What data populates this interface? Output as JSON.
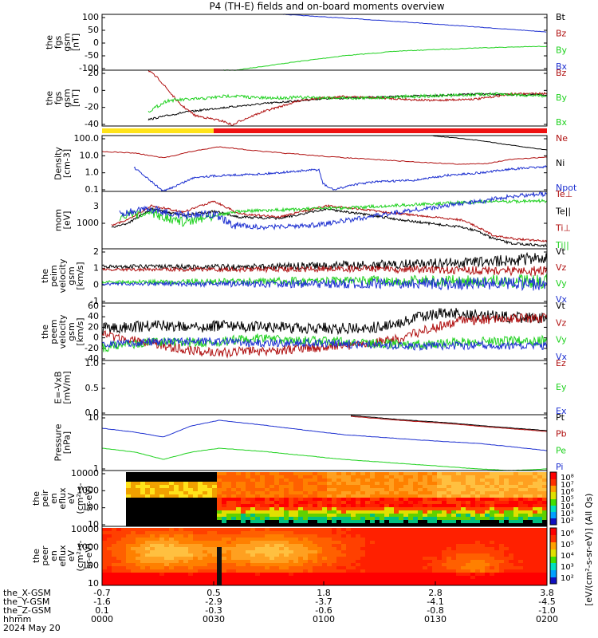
{
  "title": "P4 (TH-E) fields and on-board moments overview",
  "colors": {
    "black": "#000000",
    "red": "#b01010",
    "green": "#1fd11f",
    "blue": "#1c2fd0",
    "yellow": "#ffe31a",
    "bar_red": "#ee1111"
  },
  "chart_data": [
    {
      "type": "line",
      "ylabel_lines": [
        "the",
        "fgs",
        "gsm",
        "[nT]"
      ],
      "yticks": [
        "100",
        "50",
        "0",
        "-50",
        "-100"
      ],
      "legend": [
        {
          "text": "Bt",
          "color": "black"
        },
        {
          "text": "Bz",
          "color": "red"
        },
        {
          "text": "By",
          "color": "green"
        },
        {
          "text": "Bx",
          "color": "blue"
        }
      ]
    },
    {
      "type": "line",
      "ylabel_lines": [
        "the",
        "fgs",
        "gsm",
        "[nT]"
      ],
      "yticks": [
        "20",
        "0",
        "-20",
        "-40"
      ],
      "legend": [
        {
          "text": "Bz",
          "color": "red"
        },
        {
          "text": "By",
          "color": "green"
        },
        {
          "text": "Bx",
          "color": "green"
        }
      ]
    },
    {
      "type": "line",
      "ylabel_lines": [
        "Density",
        "[cm-3]"
      ],
      "yticks": [
        "100.0",
        "10.0",
        "1.0",
        "0.1"
      ],
      "legend": [
        {
          "text": "Ne",
          "color": "red"
        },
        {
          "text": "Ni",
          "color": "black"
        },
        {
          "text": "Npot",
          "color": "blue"
        }
      ]
    },
    {
      "type": "line",
      "ylabel_lines": [
        "mom",
        "[eV]"
      ],
      "yticks": [
        "1000"
      ],
      "extra_ticks": [
        "3"
      ],
      "legend": [
        {
          "text": "Te⊥",
          "color": "red"
        },
        {
          "text": "Te||",
          "color": "black"
        },
        {
          "text": "Ti⊥",
          "color": "red"
        },
        {
          "text": "Ti||",
          "color": "green"
        }
      ]
    },
    {
      "type": "line",
      "ylabel_lines": [
        "the",
        "peim",
        "velocity",
        "gsm",
        "[km/s]"
      ],
      "yticks": [
        "2",
        "1",
        "0",
        "-1"
      ],
      "legend": [
        {
          "text": "Vt",
          "color": "black"
        },
        {
          "text": "Vz",
          "color": "red"
        },
        {
          "text": "Vy",
          "color": "green"
        },
        {
          "text": "Vx",
          "color": "blue"
        }
      ]
    },
    {
      "type": "line",
      "ylabel_lines": [
        "the",
        "peem",
        "velocity",
        "gsm",
        "[km/s]"
      ],
      "yticks": [
        "60",
        "40",
        "20",
        "0",
        "-20",
        "-40"
      ],
      "legend": [
        {
          "text": "Vt",
          "color": "black"
        },
        {
          "text": "Vz",
          "color": "red"
        },
        {
          "text": "Vy",
          "color": "green"
        },
        {
          "text": "Vx",
          "color": "blue"
        }
      ]
    },
    {
      "type": "line",
      "ylabel_lines": [
        "E=-VxB",
        "[mV/m]"
      ],
      "yticks": [
        "1.0",
        "0.5",
        "0.0"
      ],
      "legend": [
        {
          "text": "Ez",
          "color": "red"
        },
        {
          "text": "Ey",
          "color": "green"
        },
        {
          "text": "Ex",
          "color": "blue"
        }
      ]
    },
    {
      "type": "line",
      "ylabel_lines": [
        "Pressure",
        "[nPa]"
      ],
      "yticks": [
        "10",
        "1"
      ],
      "legend": [
        {
          "text": "Pt",
          "color": "black"
        },
        {
          "text": "Pb",
          "color": "red"
        },
        {
          "text": "Pe",
          "color": "green"
        },
        {
          "text": "Pi",
          "color": "blue"
        }
      ]
    },
    {
      "type": "heatmap",
      "ylabel_lines": [
        "the",
        "peir",
        "en",
        "eflux",
        "eV",
        "(cm²-s-",
        "sr-eV)"
      ],
      "yticks": [
        "10000",
        "1000",
        "100",
        "10"
      ]
    },
    {
      "type": "heatmap",
      "ylabel_lines": [
        "the",
        "peer",
        "en",
        "eflux",
        "eV",
        "(cm²-s-",
        "sr-eV)"
      ],
      "yticks": [
        "10000",
        "1000",
        "100",
        "10"
      ]
    }
  ],
  "colorbar": {
    "ticks_top": [
      "10⁸",
      "10⁷",
      "10⁶",
      "10⁵",
      "10⁴",
      "10³",
      "10²"
    ],
    "ticks_bottom": [
      "10⁶",
      "10⁵",
      "10⁴",
      "10³",
      "10²"
    ],
    "label": "[eV/(cm²-s-sr-eV)] (All Qs)"
  },
  "x_axis": {
    "rows": [
      {
        "label": "the_X-GSM",
        "values": [
          "-0.7",
          "0.5",
          "1.8",
          "2.8",
          "3.8"
        ]
      },
      {
        "label": "the_Y-GSM",
        "values": [
          "-1.6",
          "-2.9",
          "-3.7",
          "-4.1",
          "-4.5"
        ]
      },
      {
        "label": "the_Z-GSM",
        "values": [
          "0.1",
          "-0.3",
          "-0.6",
          "-0.8",
          "-1.0"
        ]
      },
      {
        "label": "hhmm",
        "values": [
          "0000",
          "0030",
          "0100",
          "0130",
          "0200"
        ]
      }
    ],
    "date": "2024 May 20"
  }
}
